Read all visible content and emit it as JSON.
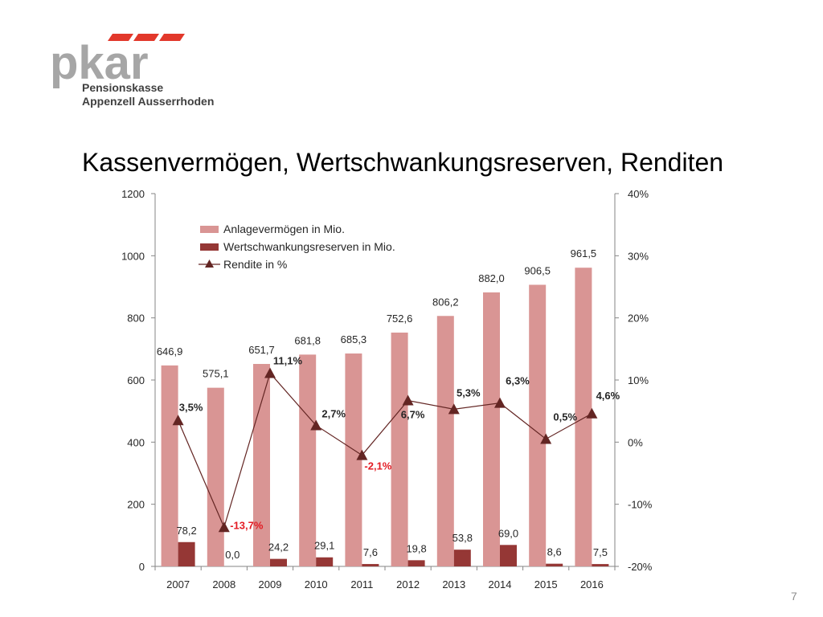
{
  "logo": {
    "mark": "pkar",
    "line1": "Pensionskasse",
    "line2": "Appenzell Ausserrhoden"
  },
  "slide": {
    "title": "Kassenvermögen, Wertschwankungsreserven, Renditen",
    "page_number": "7"
  },
  "colors": {
    "bar1": "#d99594",
    "bar2": "#953735",
    "line": "#632523",
    "negative_label": "#e31b23",
    "axis": "#868686",
    "logo_gray": "#a6a6a6",
    "logo_red": "#e2382b"
  },
  "chart_data": {
    "type": "bar",
    "title": "",
    "categories": [
      "2007",
      "2008",
      "2009",
      "2010",
      "2011",
      "2012",
      "2013",
      "2014",
      "2015",
      "2016"
    ],
    "series": [
      {
        "name": "Anlagevermögen in Mio.",
        "kind": "bar",
        "axis": "left",
        "values": [
          646.9,
          575.1,
          651.7,
          681.8,
          685.3,
          752.6,
          806.2,
          882.0,
          906.5,
          961.5
        ],
        "labels": [
          "646,9",
          "575,1",
          "651,7",
          "681,8",
          "685,3",
          "752,6",
          "806,2",
          "882,0",
          "906,5",
          "961,5"
        ]
      },
      {
        "name": "Wertschwankungsreserven in Mio.",
        "kind": "bar",
        "axis": "left",
        "values": [
          78.2,
          0.0,
          24.2,
          29.1,
          7.6,
          19.8,
          53.8,
          69.0,
          8.6,
          7.5
        ],
        "labels": [
          "78,2",
          "0,0",
          "24,2",
          "29,1",
          "7,6",
          "19,8",
          "53,8",
          "69,0",
          "8,6",
          "7,5"
        ]
      },
      {
        "name": "Rendite in %",
        "kind": "line",
        "axis": "right",
        "values": [
          3.5,
          -13.7,
          11.1,
          2.7,
          -2.1,
          6.7,
          5.3,
          6.3,
          0.5,
          4.6
        ],
        "labels": [
          "3,5%",
          "-13,7%",
          "11,1%",
          "2,7%",
          "-2,1%",
          "6,7%",
          "5,3%",
          "6,3%",
          "0,5%",
          "4,6%"
        ]
      }
    ],
    "y_left": {
      "min": 0,
      "max": 1200,
      "ticks": [
        "0",
        "200",
        "400",
        "600",
        "800",
        "1000",
        "1200"
      ]
    },
    "y_right": {
      "min": -20,
      "max": 40,
      "ticks": [
        "-20%",
        "-10%",
        "0%",
        "10%",
        "20%",
        "30%",
        "40%"
      ]
    },
    "legend_position": "top-left",
    "grid": false
  }
}
